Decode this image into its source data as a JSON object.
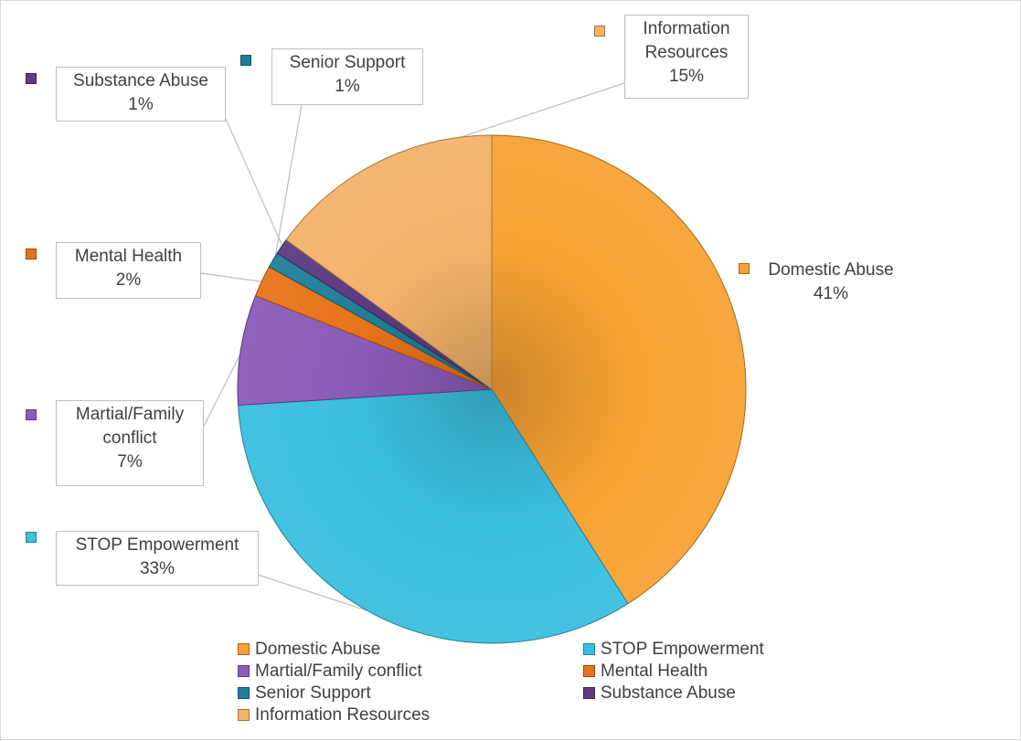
{
  "chart_data": {
    "type": "pie",
    "title": "",
    "categories": [
      "Domestic Abuse",
      "STOP Empowerment",
      "Martial/Family conflict",
      "Mental Health",
      "Senior Support",
      "Substance Abuse",
      "Information Resources"
    ],
    "values": [
      41,
      33,
      7,
      2,
      1,
      1,
      15
    ],
    "value_labels": [
      "41%",
      "33%",
      "7%",
      "2%",
      "1%",
      "1%",
      "15%"
    ],
    "colors": [
      "#f7a234",
      "#3bbfe0",
      "#8a5cb8",
      "#e8731b",
      "#1f7f99",
      "#5c3b80",
      "#f3b26a"
    ],
    "legend_position": "bottom"
  }
}
